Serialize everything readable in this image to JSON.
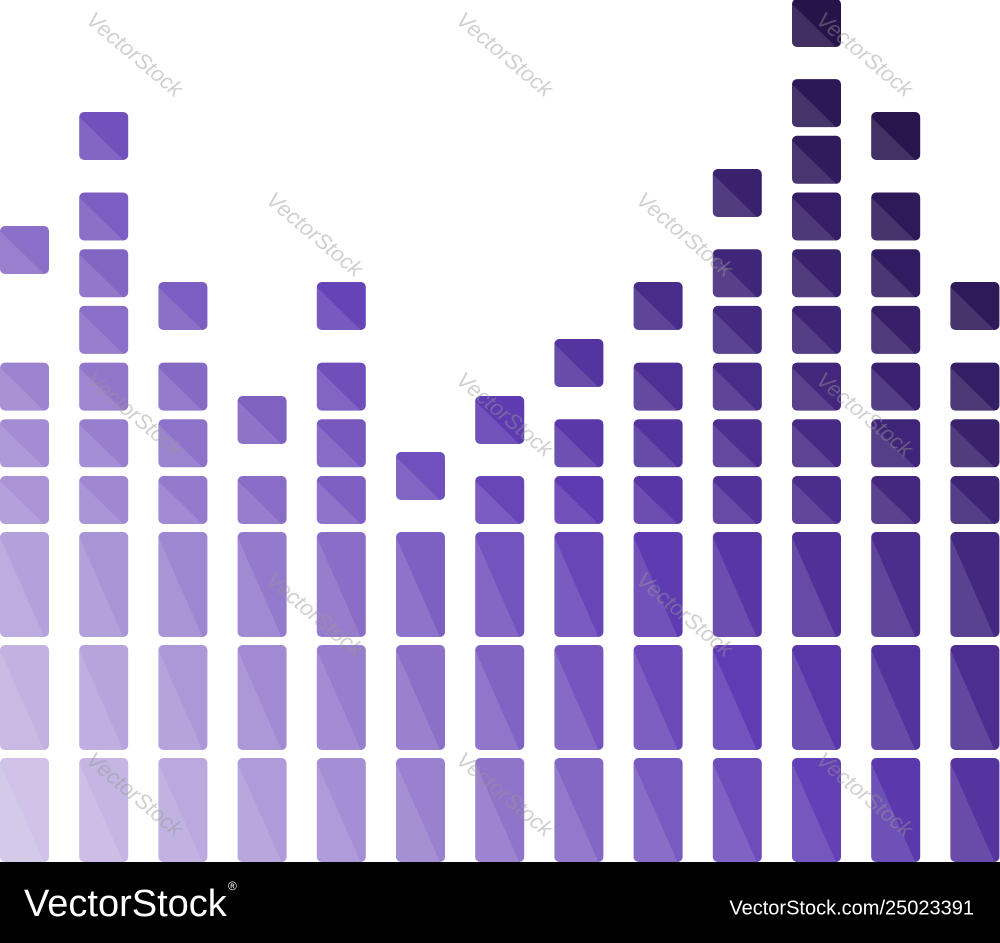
{
  "watermark": "VectorStock",
  "footer": {
    "logo": "VectorStock",
    "registered": "®",
    "id": "VectorStock.com/25023391"
  }
}
